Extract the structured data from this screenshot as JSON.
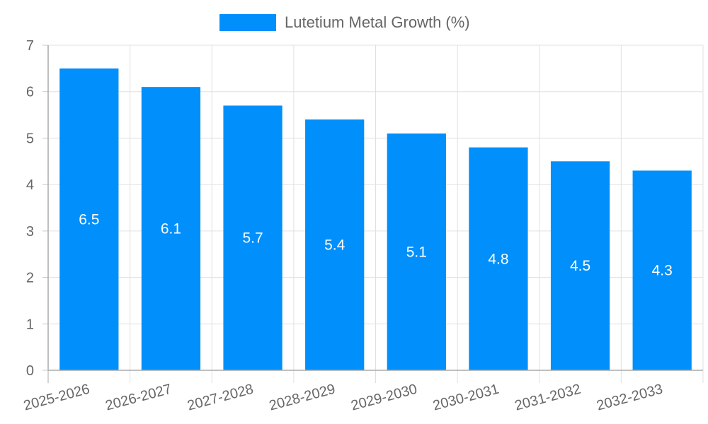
{
  "chart_data": {
    "type": "bar",
    "title": "",
    "categories": [
      "2025-2026",
      "2026-2027",
      "2027-2028",
      "2028-2029",
      "2029-2030",
      "2030-2031",
      "2031-2032",
      "2032-2033"
    ],
    "series": [
      {
        "name": "Lutetium Metal Growth (%)",
        "values": [
          6.5,
          6.1,
          5.7,
          5.4,
          5.1,
          4.8,
          4.5,
          4.3
        ],
        "color": "#008ffb"
      }
    ],
    "xlabel": "",
    "ylabel": "",
    "ylim": [
      0,
      7
    ],
    "yticks": [
      0,
      1,
      2,
      3,
      4,
      5,
      6,
      7
    ],
    "grid": true,
    "legend_position": "top",
    "data_labels": true
  },
  "legend": {
    "label": "Lutetium Metal Growth (%)",
    "color": "#008ffb"
  }
}
